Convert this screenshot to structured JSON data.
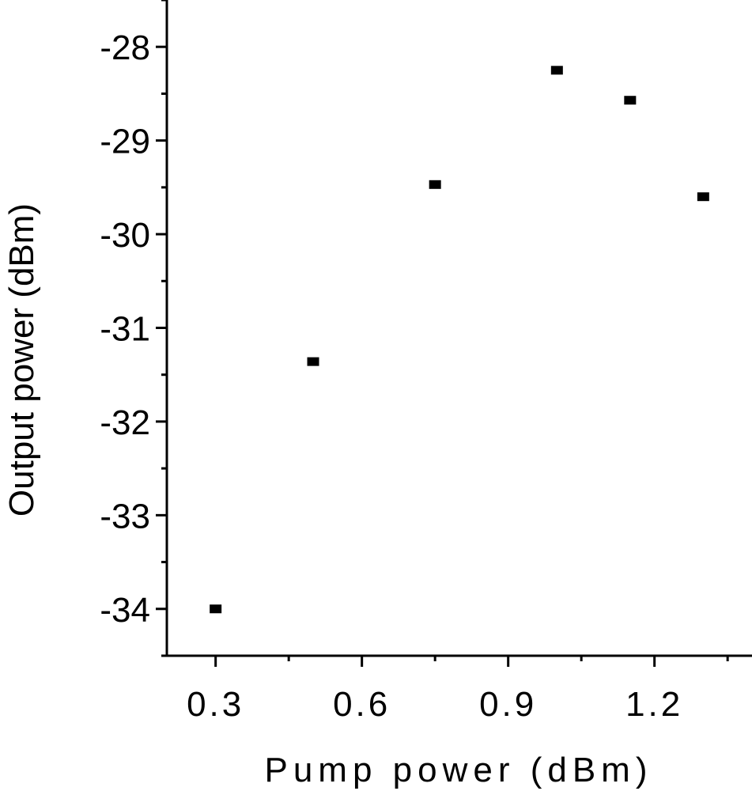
{
  "chart_data": {
    "type": "scatter",
    "xlabel": "Pump power (dBm)",
    "ylabel": "Output power (dBm)",
    "xlim": [
      0.2,
      1.4
    ],
    "ylim": [
      -34.5,
      -27.5
    ],
    "xticks": [
      0.3,
      0.6,
      0.9,
      1.2
    ],
    "xtick_labels": [
      "0.3",
      "0.6",
      "0.9",
      "1.2"
    ],
    "yticks": [
      -34,
      -33,
      -32,
      -31,
      -30,
      -29,
      -28
    ],
    "ytick_labels": [
      "-34",
      "-33",
      "-32",
      "-31",
      "-30",
      "-29",
      "-28"
    ],
    "grid": false,
    "marker": "square",
    "marker_color": "#000000",
    "points": [
      {
        "x": 0.3,
        "y": -34.0
      },
      {
        "x": 0.5,
        "y": -31.36
      },
      {
        "x": 0.75,
        "y": -29.47
      },
      {
        "x": 1.0,
        "y": -28.25
      },
      {
        "x": 1.15,
        "y": -28.57
      },
      {
        "x": 1.3,
        "y": -29.6
      }
    ]
  }
}
